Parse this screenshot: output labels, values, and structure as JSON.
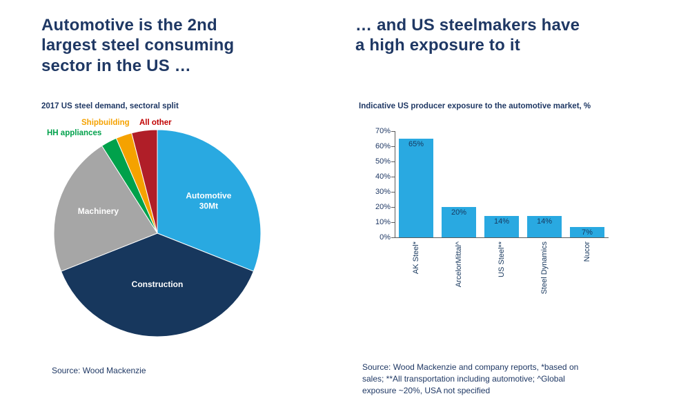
{
  "left_panel": {
    "title_lines": [
      "Automotive is the 2nd",
      "largest steel consuming",
      "sector in the US …"
    ],
    "chart_title": "2017 US steel demand,  sectoral split",
    "source": "Source: Wood Mackenzie"
  },
  "right_panel": {
    "title_lines": [
      "… and US steelmakers have",
      "a high exposure to it"
    ],
    "chart_title": "Indicative US producer exposure to the automotive market, %",
    "source_lines": [
      "Source: Wood Mackenzie and company reports, *based on",
      "sales; **All transportation  including automotive; ^Global",
      "exposure ~20%, USA not specified"
    ]
  },
  "colors": {
    "title_navy": "#1F3864",
    "text_navy": "#17375D",
    "bar_blue": "#29A9E1",
    "axis_gray": "#595959"
  },
  "chart_data": [
    {
      "type": "pie",
      "title": "2017 US steel demand, sectoral split",
      "slices": [
        {
          "label": "Automotive",
          "sublabel": "30Mt",
          "value": 31,
          "color": "#29A9E1",
          "label_inside": true
        },
        {
          "label": "Construction",
          "value": 38,
          "color": "#17375D",
          "label_inside": true
        },
        {
          "label": "Machinery",
          "value": 22,
          "color": "#A6A6A6",
          "label_inside": true
        },
        {
          "label": "HH appliances",
          "value": 2.5,
          "color": "#00A14B",
          "label_inside": false
        },
        {
          "label": "Shipbuilding",
          "value": 2.5,
          "color": "#F5A200",
          "label_inside": false
        },
        {
          "label": "All other",
          "value": 4,
          "color": "#B01E28",
          "label_color": "#C00000",
          "label_inside": false
        }
      ]
    },
    {
      "type": "bar",
      "title": "Indicative US producer exposure to the automotive market, %",
      "categories": [
        "AK Steel*",
        "ArcelorMittal^",
        "US Steel**",
        "Steel Dynamics",
        "Nucor"
      ],
      "values": [
        65,
        20,
        14,
        14,
        7
      ],
      "value_labels": [
        "65%",
        "20%",
        "14%",
        "14%",
        "7%"
      ],
      "ylim": [
        0,
        70
      ],
      "ytick_labels": [
        "0%",
        "10%",
        "20%",
        "30%",
        "40%",
        "50%",
        "60%",
        "70%"
      ],
      "bar_color": "#29A9E1",
      "grid": false,
      "legend": "none"
    }
  ]
}
